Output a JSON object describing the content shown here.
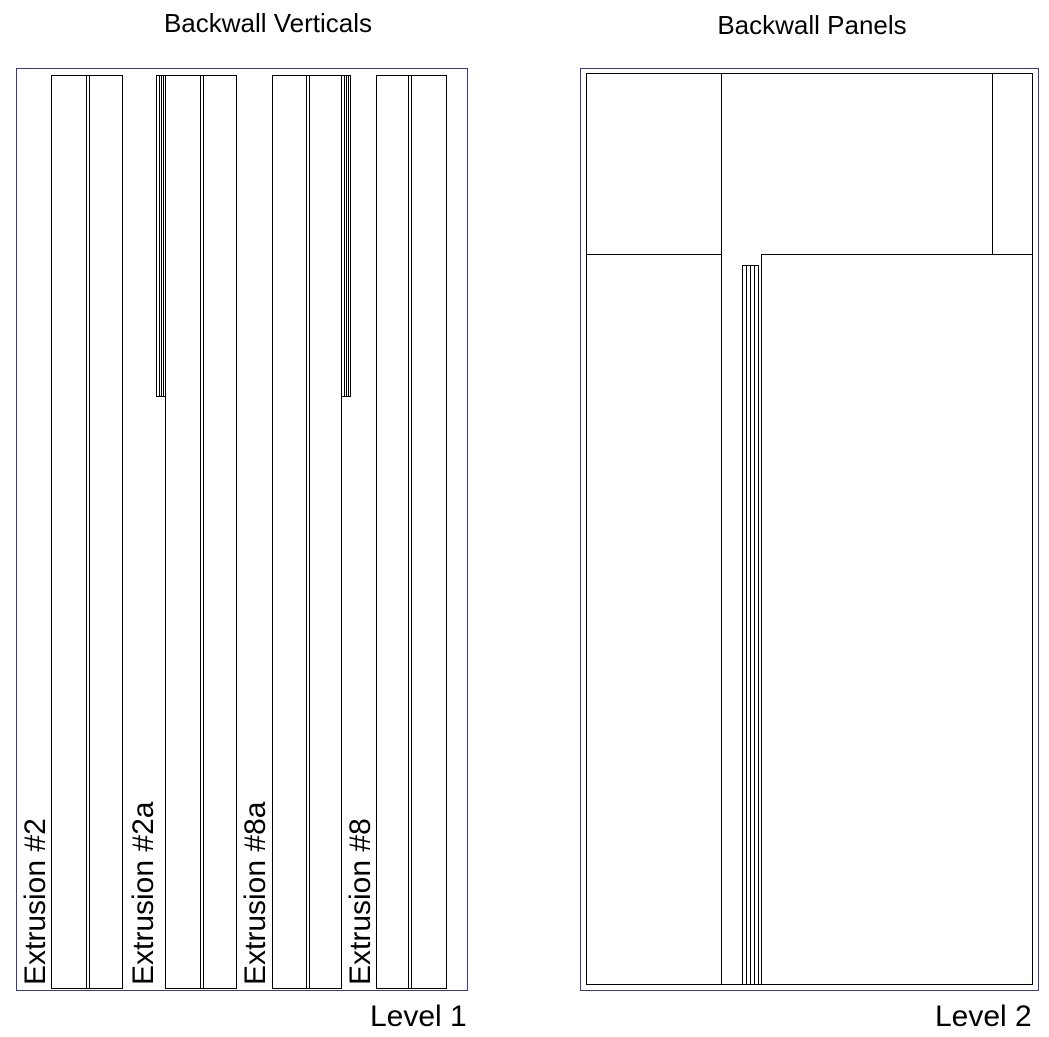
{
  "left_view": {
    "title": "Backwall Verticals",
    "level": "Level 1",
    "extrusions": [
      {
        "label": "Extrusion #2"
      },
      {
        "label": "Extrusion #2a"
      },
      {
        "label": "Extrusion #8a"
      },
      {
        "label": "Extrusion #8"
      }
    ]
  },
  "right_view": {
    "title": "Backwall Panels",
    "level": "Level 2"
  },
  "colors": {
    "frame": "#3a3a8a",
    "line": "#000000",
    "background": "#ffffff"
  }
}
